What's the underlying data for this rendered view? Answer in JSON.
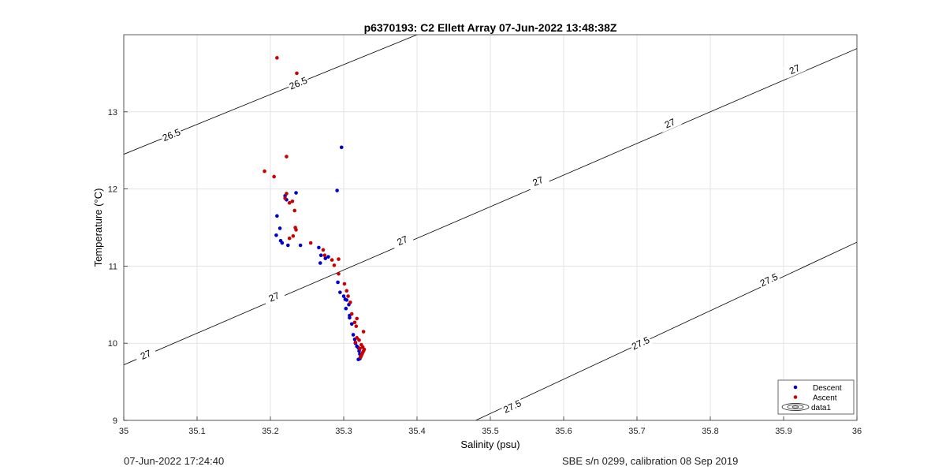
{
  "chart_data": {
    "type": "scatter",
    "title": "p6370193: C2 Ellett Array 07-Jun-2022 13:48:38Z",
    "xlabel": "Salinity (psu)",
    "ylabel": "Temperature (°C)",
    "xlim": [
      35,
      36
    ],
    "ylim": [
      9,
      14
    ],
    "x_ticks": [
      "35",
      "35.1",
      "35.2",
      "35.3",
      "35.4",
      "35.5",
      "35.6",
      "35.7",
      "35.8",
      "35.9",
      "36"
    ],
    "y_ticks": [
      "9",
      "10",
      "11",
      "12",
      "13"
    ],
    "grid": true,
    "legend_position": "bottom-right",
    "series": [
      {
        "name": "Descent",
        "color": "#0000cc",
        "x": [
          35.297,
          35.291,
          35.235,
          35.222,
          35.22,
          35.209,
          35.213,
          35.208,
          35.214,
          35.216,
          35.224,
          35.241,
          35.266,
          35.269,
          35.279,
          35.268,
          35.275,
          35.292,
          35.295,
          35.3,
          35.302,
          35.304,
          35.307,
          35.308,
          35.303,
          35.308,
          35.311,
          35.313,
          35.315,
          35.316,
          35.318,
          35.32,
          35.321,
          35.322,
          35.323,
          35.322,
          35.32
        ],
        "y": [
          12.54,
          11.98,
          11.95,
          11.86,
          11.91,
          11.65,
          11.49,
          11.4,
          11.33,
          11.3,
          11.27,
          11.27,
          11.24,
          11.14,
          11.12,
          11.04,
          11.1,
          10.79,
          10.66,
          10.61,
          10.57,
          10.56,
          10.5,
          10.36,
          10.45,
          10.33,
          10.25,
          10.11,
          10.05,
          10.0,
          9.96,
          9.94,
          9.9,
          9.86,
          9.82,
          9.8,
          9.79
        ]
      },
      {
        "name": "Ascent",
        "color": "#cc0000",
        "x": [
          35.209,
          35.236,
          35.222,
          35.192,
          35.205,
          35.222,
          35.22,
          35.226,
          35.23,
          35.233,
          35.234,
          35.235,
          35.231,
          35.226,
          35.255,
          35.272,
          35.274,
          35.284,
          35.293,
          35.287,
          35.293,
          35.301,
          35.304,
          35.306,
          35.309,
          35.311,
          35.315,
          35.318,
          35.317,
          35.327,
          35.318,
          35.321,
          35.316,
          35.324,
          35.326,
          35.322,
          35.328,
          35.327,
          35.326,
          35.325,
          35.324,
          35.323
        ],
        "y": [
          13.7,
          13.5,
          12.42,
          12.23,
          12.16,
          11.94,
          11.88,
          11.82,
          11.84,
          11.72,
          11.5,
          11.47,
          11.39,
          11.36,
          11.3,
          11.21,
          11.14,
          11.08,
          11.09,
          11.01,
          10.9,
          10.77,
          10.68,
          10.61,
          10.53,
          10.38,
          10.27,
          10.32,
          10.22,
          10.15,
          10.07,
          10.04,
          10.01,
          9.98,
          9.95,
          9.93,
          9.92,
          9.9,
          9.88,
          9.86,
          9.84,
          9.82
        ]
      }
    ],
    "contours": [
      {
        "label": "26.5",
        "from": [
          35.0,
          12.45
        ],
        "to": [
          35.4,
          14.0
        ],
        "label_positions": [
          [
            35.065,
            12.7
          ],
          [
            35.238,
            13.37
          ]
        ]
      },
      {
        "label": "27",
        "from": [
          35.0,
          9.72
        ],
        "to": [
          36.0,
          13.82
        ],
        "label_positions": [
          [
            35.03,
            9.85
          ],
          [
            35.205,
            10.6
          ],
          [
            35.38,
            11.33
          ],
          [
            35.565,
            12.1
          ],
          [
            35.745,
            12.85
          ],
          [
            35.915,
            13.55
          ]
        ]
      },
      {
        "label": "27.5",
        "from": [
          35.48,
          9.0
        ],
        "to": [
          36.0,
          11.31
        ],
        "label_positions": [
          [
            35.53,
            9.18
          ],
          [
            35.705,
            10.0
          ],
          [
            35.88,
            10.82
          ]
        ]
      }
    ],
    "legend_entries": [
      "Descent",
      "Ascent",
      "data1"
    ]
  },
  "footer": {
    "left": "07-Jun-2022 17:24:40",
    "right": "SBE s/n 0299, calibration 08 Sep 2019"
  }
}
